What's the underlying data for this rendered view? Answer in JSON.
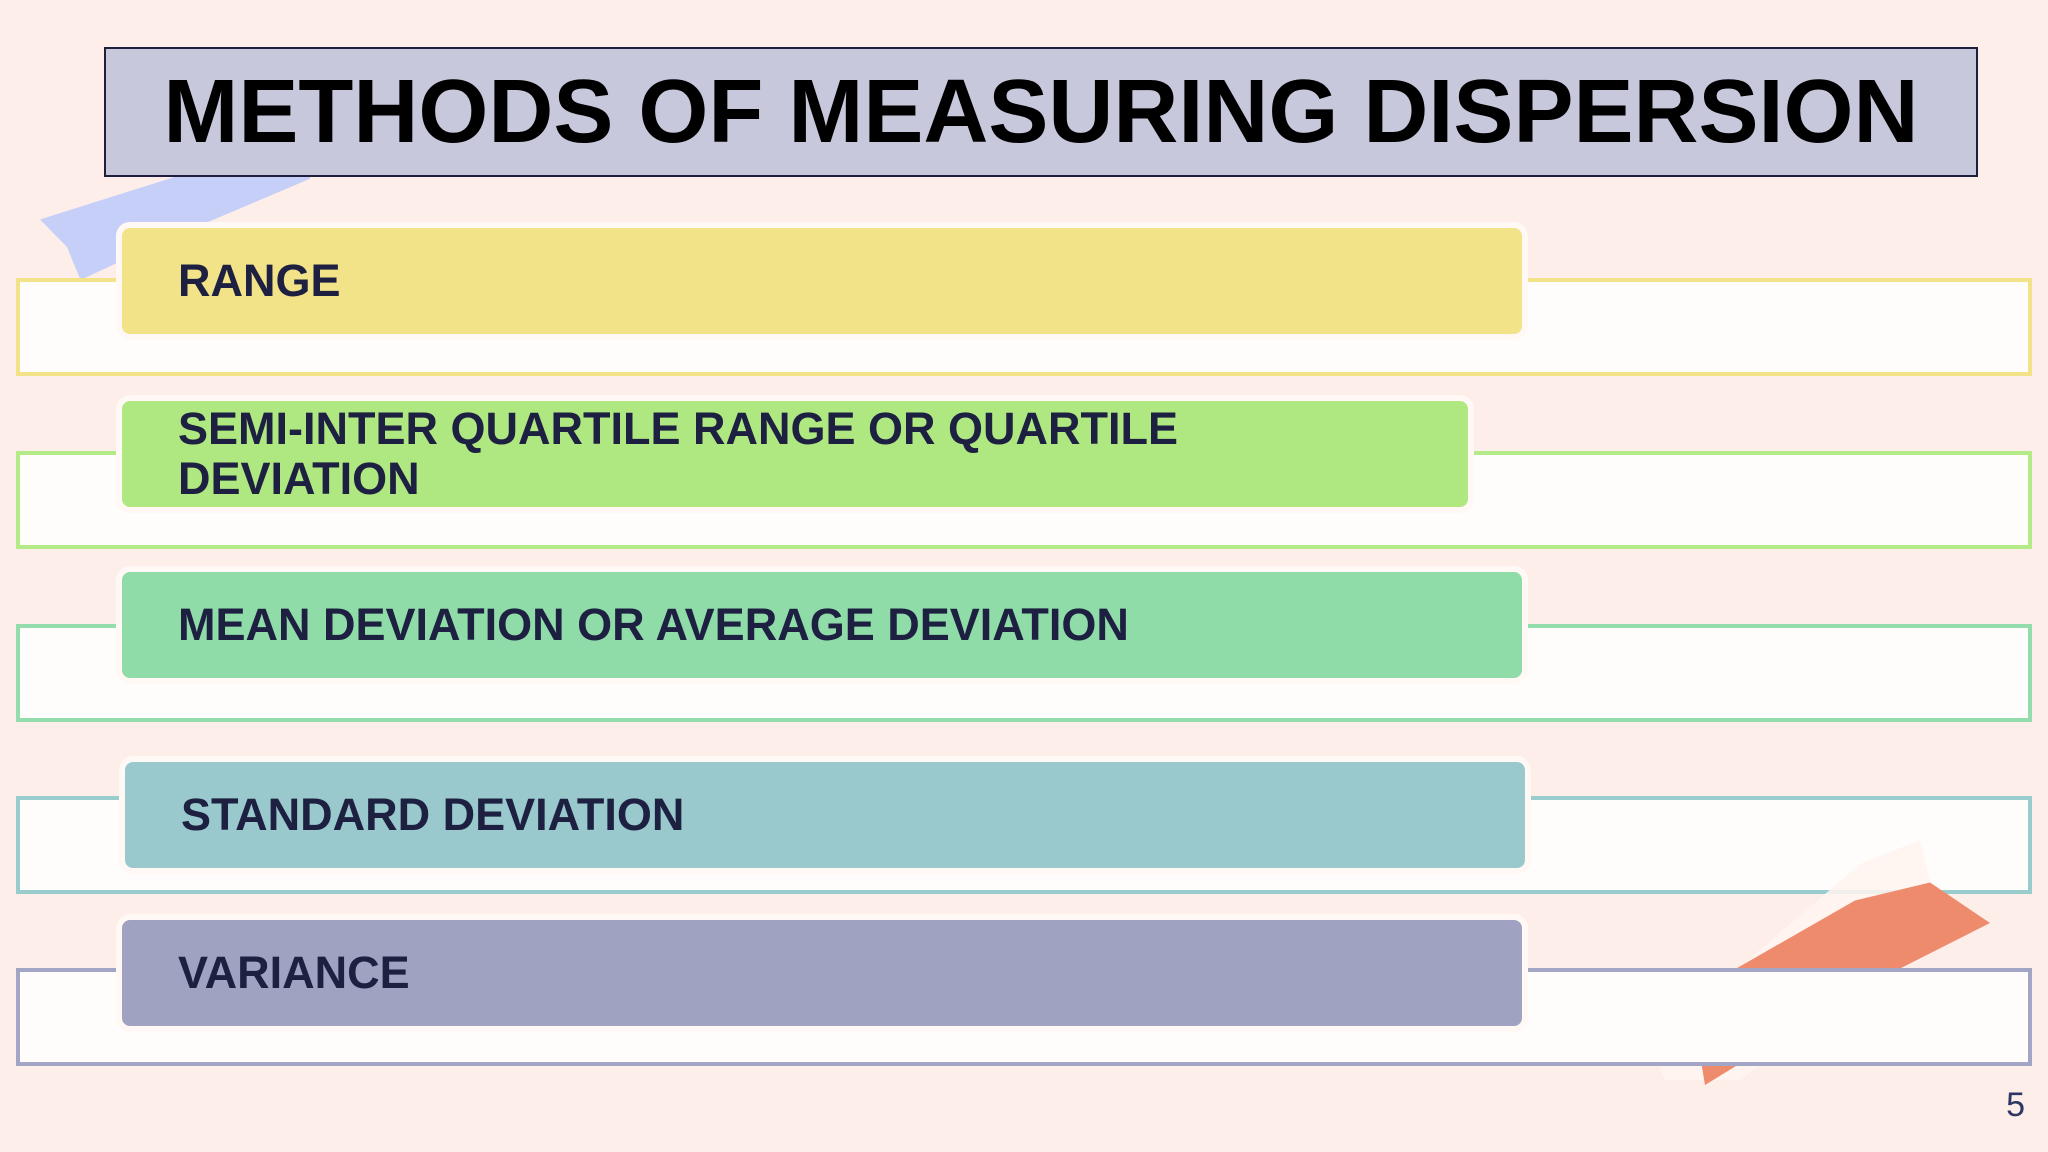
{
  "slide": {
    "title": "METHODS OF MEASURING DISPERSION",
    "page_number": "5",
    "items": [
      {
        "label": "RANGE",
        "fill_color": "#f2e288",
        "outline_color": "#f2e288"
      },
      {
        "label": "SEMI-INTER QUARTILE RANGE OR QUARTILE DEVIATION",
        "fill_color": "#afe881",
        "outline_color": "#b4ea88"
      },
      {
        "label": "MEAN DEVIATION OR AVERAGE DEVIATION",
        "fill_color": "#8fdca9",
        "outline_color": "#93dcac"
      },
      {
        "label": "STANDARD DEVIATION",
        "fill_color": "#99c9cc",
        "outline_color": "#99cccc"
      },
      {
        "label": "VARIANCE",
        "fill_color": "#a0a2c2",
        "outline_color": "#a3a5c5"
      }
    ],
    "decor": {
      "background_color": "#fdeee9",
      "title_fill": "#c7c8dc"
    }
  }
}
